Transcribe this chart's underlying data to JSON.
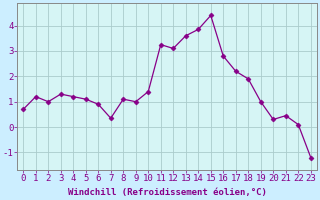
{
  "x": [
    0,
    1,
    2,
    3,
    4,
    5,
    6,
    7,
    8,
    9,
    10,
    11,
    12,
    13,
    14,
    15,
    16,
    17,
    18,
    19,
    20,
    21,
    22,
    23
  ],
  "y": [
    0.7,
    1.2,
    1.0,
    1.3,
    1.2,
    1.1,
    0.9,
    0.35,
    1.1,
    1.0,
    1.4,
    3.25,
    3.1,
    3.6,
    3.85,
    4.4,
    2.8,
    2.2,
    1.9,
    1.0,
    0.3,
    0.45,
    0.1,
    -1.2
  ],
  "line_color": "#880088",
  "marker": "D",
  "marker_size": 2.5,
  "bg_color": "#cceeff",
  "plot_bg_color": "#d6f5f5",
  "grid_color": "#aacccc",
  "xlabel": "Windchill (Refroidissement éolien,°C)",
  "xlabel_fontsize": 6.5,
  "xtick_labels": [
    "0",
    "1",
    "2",
    "3",
    "4",
    "5",
    "6",
    "7",
    "8",
    "9",
    "10",
    "11",
    "12",
    "13",
    "14",
    "15",
    "16",
    "17",
    "18",
    "19",
    "20",
    "21",
    "22",
    "23"
  ],
  "ytick_values": [
    -1,
    0,
    1,
    2,
    3,
    4
  ],
  "ytick_labels": [
    "-1",
    "0",
    "1",
    "2",
    "3",
    "4"
  ],
  "ylim": [
    -1.7,
    4.9
  ],
  "xlim": [
    -0.5,
    23.5
  ],
  "tick_fontsize": 6.5,
  "label_color": "#880088",
  "spine_color": "#888888"
}
